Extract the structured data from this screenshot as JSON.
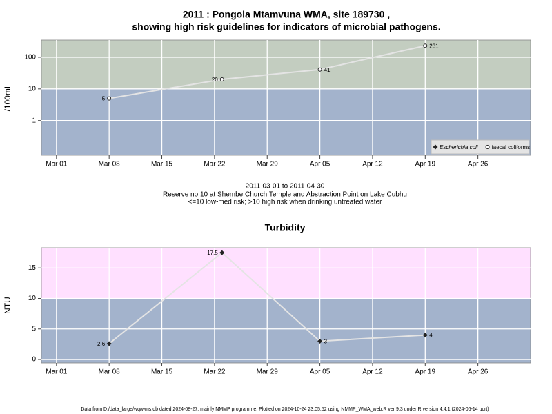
{
  "title": "2011 : Pongola Mtamvuna WMA, site 189730 ,",
  "subtitle": "showing high risk guidelines for indicators of microbial pathogens.",
  "notes": [
    "2011-03-01 to 2011-04-30",
    "Reserve no 10 at Shembe Church Temple and Abstraction Point on Lake Cubhu",
    "<=10 low-med risk; >10 high risk when drinking untreated water"
  ],
  "footer": "Data from D:/data_large/wq/wms.db dated 2024-08-27, mainly NMMP programme. Plotted on 2024-10-24 23:05:52 using NMMP_WMA_web.R ver 9.3 under R version 4.4.1 (2024-06-14 ucrt)",
  "chart_data": [
    {
      "type": "line",
      "y_label": "/100mL",
      "log_scale": true,
      "grid": true,
      "threshold": 10,
      "band_colors": [
        "#a3b3cc",
        "#c3cdc0"
      ],
      "legend": "bottom-right",
      "x": [
        "2011-03-08",
        "2011-03-23",
        "2011-04-05",
        "2011-04-19"
      ],
      "series": [
        {
          "name": "Escherichia coli",
          "color": "#222222",
          "marker": "diamond",
          "values": [
            null,
            null,
            null,
            null
          ]
        },
        {
          "name": "faecal coliforms",
          "color": "#222222",
          "marker": "circle",
          "values": [
            5,
            20,
            41,
            231
          ]
        }
      ],
      "xlim": [
        "2011-02-27",
        "2011-05-03"
      ],
      "xticks": [
        {
          "value": "2011-03-01",
          "label": "Mar 01"
        },
        {
          "value": "2011-03-08",
          "label": "Mar 08"
        },
        {
          "value": "2011-03-15",
          "label": "Mar 15"
        },
        {
          "value": "2011-03-22",
          "label": "Mar 22"
        },
        {
          "value": "2011-03-29",
          "label": "Mar 29"
        },
        {
          "value": "2011-04-05",
          "label": "Apr 05"
        },
        {
          "value": "2011-04-12",
          "label": "Apr 12"
        },
        {
          "value": "2011-04-19",
          "label": "Apr 19"
        },
        {
          "value": "2011-04-26",
          "label": "Apr 26"
        }
      ],
      "ylim": [
        0.08,
        350
      ],
      "yticks": [
        1,
        10,
        100
      ]
    },
    {
      "type": "line",
      "title": "Turbidity",
      "y_label": "NTU",
      "log_scale": false,
      "grid": true,
      "threshold": 10,
      "band_colors": [
        "#a3b3cc",
        "#ffe0ff"
      ],
      "x": [
        "2011-03-08",
        "2011-03-23",
        "2011-04-05",
        "2011-04-19"
      ],
      "series": [
        {
          "color": "#222222",
          "marker": "diamond",
          "values": [
            2.6,
            17.5,
            3,
            4
          ]
        }
      ],
      "xlim": [
        "2011-02-27",
        "2011-05-03"
      ],
      "xticks": [
        {
          "value": "2011-03-01",
          "label": "Mar 01"
        },
        {
          "value": "2011-03-08",
          "label": "Mar 08"
        },
        {
          "value": "2011-03-15",
          "label": "Mar 15"
        },
        {
          "value": "2011-03-22",
          "label": "Mar 22"
        },
        {
          "value": "2011-03-29",
          "label": "Mar 29"
        },
        {
          "value": "2011-04-05",
          "label": "Apr 05"
        },
        {
          "value": "2011-04-12",
          "label": "Apr 12"
        },
        {
          "value": "2011-04-19",
          "label": "Apr 19"
        },
        {
          "value": "2011-04-26",
          "label": "Apr 26"
        }
      ],
      "ylim": [
        -0.56,
        18.3
      ],
      "yticks": [
        0,
        5,
        10,
        15
      ]
    }
  ]
}
